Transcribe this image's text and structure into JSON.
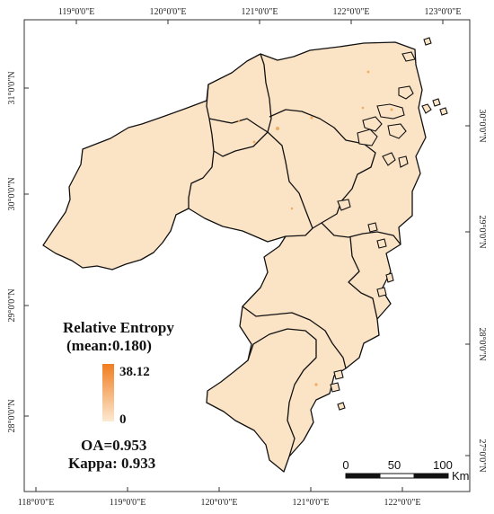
{
  "map": {
    "top_ticks": [
      "119°0'0\"E",
      "120°0'0\"E",
      "121°0'0\"E",
      "122°0'0\"E",
      "123°0'0\"E"
    ],
    "bottom_ticks": [
      "118°0'0\"E",
      "119°0'0\"E",
      "120°0'0\"E",
      "121°0'0\"E",
      "122°0'0\"E"
    ],
    "left_ticks": [
      "31°0'0\"N",
      "30°0'0\"N",
      "29°0'0\"N",
      "28°0'0\"N"
    ],
    "right_ticks": [
      "30°0'0\"N",
      "29°0'0\"N",
      "28°0'0\"N",
      "27°0'0\"N"
    ],
    "fill_color": "#fbe3c6",
    "hotspot_color": "#f3a24e"
  },
  "legend": {
    "title_line1": "Relative Entropy",
    "title_line2": "(mean:0.180)",
    "max_label": "38.12",
    "min_label": "0",
    "ramp_high_color": "#f07d1f",
    "ramp_low_color": "#fde9d2"
  },
  "accuracy": {
    "oa": "OA=0.953",
    "kappa": "Kappa: 0.933"
  },
  "scalebar": {
    "labels": [
      "0",
      "50",
      "100"
    ],
    "unit": "Km"
  }
}
